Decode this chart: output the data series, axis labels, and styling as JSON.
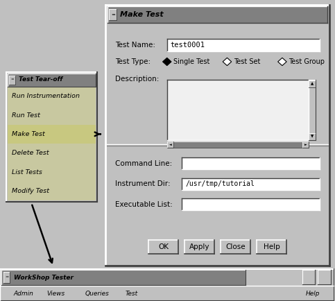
{
  "bg_color": "#c0c0c0",
  "dialog_bg": "#c0c0c0",
  "white_bg": "#ffffff",
  "dark_gray": "#808080",
  "text_color": "#000000",
  "main_dialog": {
    "title": "Make Test"
  },
  "test_name_label": "Test Name:",
  "test_name_value": "test0001",
  "test_type_label": "Test Type:",
  "test_type_options": [
    "Single Test",
    "Test Set",
    "Test Group"
  ],
  "description_label": "Description:",
  "command_line_label": "Command Line:",
  "instrument_dir_label": "Instrument Dir:",
  "instrument_dir_value": "/usr/tmp/tutorial",
  "executable_list_label": "Executable List:",
  "buttons": [
    "OK",
    "Apply",
    "Close",
    "Help"
  ],
  "tearoff": {
    "title": "Test Tear-off",
    "items": [
      "Run Instrumentation",
      "Run Test",
      "Make Test",
      "Delete Test",
      "List Tests",
      "Modify Test"
    ],
    "selected_index": 2
  },
  "statusbar": {
    "title": "WorkShop Tester",
    "menu_items": [
      "Admin",
      "Views",
      "Queries",
      "Test"
    ],
    "help_item": "Help"
  }
}
